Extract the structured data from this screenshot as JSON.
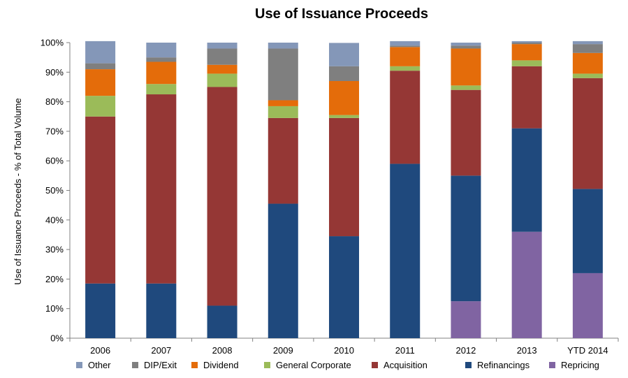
{
  "chart_data": {
    "type": "bar",
    "stacked": true,
    "title": "Use of Issuance Proceeds",
    "ylabel": "Use of Issuance Proceeds - % of Total Volume",
    "xlabel": "",
    "ylim": [
      0,
      100
    ],
    "y_ticks": [
      "0%",
      "10%",
      "20%",
      "30%",
      "40%",
      "50%",
      "60%",
      "70%",
      "80%",
      "90%",
      "100%"
    ],
    "categories": [
      "2006",
      "2007",
      "2008",
      "2009",
      "2010",
      "2011",
      "2012",
      "2013",
      "YTD 2014"
    ],
    "legend_position": "bottom",
    "series": [
      {
        "name": "Repricing",
        "color": "#8064a2",
        "values": [
          0,
          0,
          0,
          0,
          0,
          0,
          12.5,
          36,
          22
        ]
      },
      {
        "name": "Refinancings",
        "color": "#1f497d",
        "values": [
          18.5,
          18.5,
          11,
          45.5,
          34.5,
          59,
          42.5,
          35,
          28.5
        ]
      },
      {
        "name": "Acquisition",
        "color": "#953735",
        "values": [
          56.5,
          64,
          74,
          29,
          40,
          31.5,
          29,
          21,
          37.5
        ]
      },
      {
        "name": "General Corporate",
        "color": "#9bbb59",
        "values": [
          7,
          3.5,
          4.5,
          4,
          1,
          1.5,
          1.5,
          2,
          1.5
        ]
      },
      {
        "name": "Dividend",
        "color": "#e46c0a",
        "values": [
          9,
          7.5,
          3,
          2,
          11.5,
          6.5,
          12.5,
          5.5,
          7
        ]
      },
      {
        "name": "DIP/Exit",
        "color": "#7f7f7f",
        "values": [
          2,
          1.5,
          5.5,
          17.5,
          5,
          0.5,
          1,
          0.5,
          3
        ]
      },
      {
        "name": "Other",
        "color": "#8497b8",
        "values": [
          7.5,
          5,
          2,
          2,
          7.9,
          1.5,
          1,
          0.5,
          1
        ]
      }
    ],
    "legend_order": [
      "Other",
      "DIP/Exit",
      "Dividend",
      "General Corporate",
      "Acquisition",
      "Refinancings",
      "Repricing"
    ],
    "grid": false
  }
}
